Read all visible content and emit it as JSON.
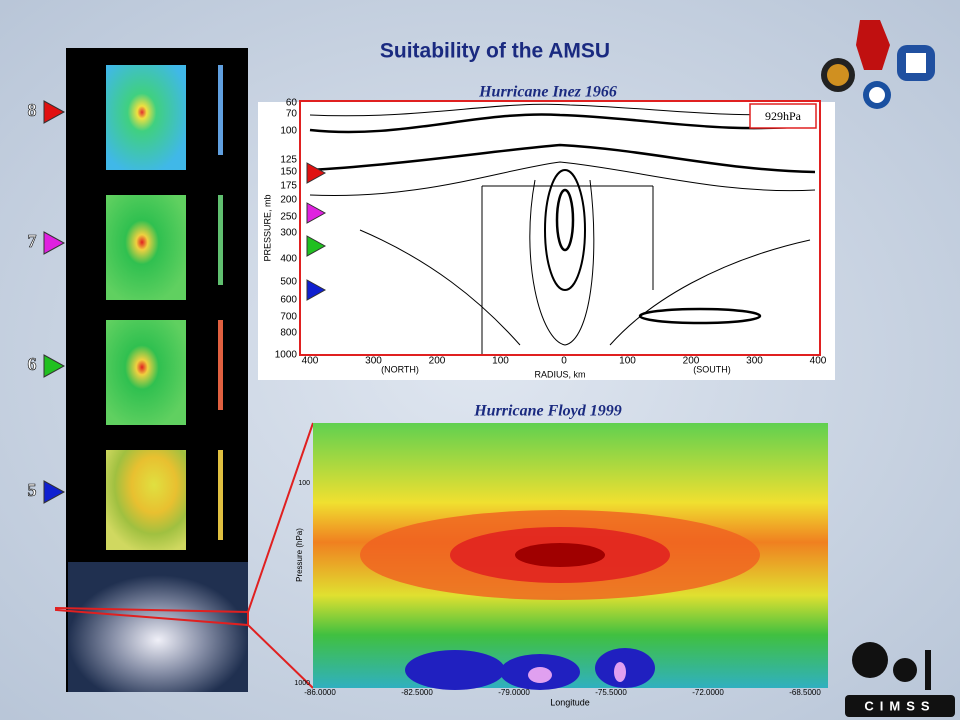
{
  "header": {
    "title": "Suitability of the AMSU"
  },
  "channels": [
    "8",
    "7",
    "6",
    "5"
  ],
  "inez": {
    "title": "Hurricane Inez 1966",
    "annotation": "929hPa",
    "y_label": "PRESSURE, mb",
    "y_ticks": [
      "60",
      "70",
      "100",
      "125",
      "150",
      "175",
      "200",
      "250",
      "300",
      "400",
      "500",
      "600",
      "700",
      "800",
      "1000"
    ],
    "x_ticks": [
      "400",
      "300",
      "200",
      "100",
      "0",
      "100",
      "200",
      "300",
      "400"
    ],
    "x_label": "RADIUS, km",
    "north": "(NORTH)",
    "south": "(SOUTH)"
  },
  "floyd": {
    "title": "Hurricane Floyd 1999",
    "y_label": "Pressure (hPa)",
    "y_ticks": [
      "100",
      "1000"
    ],
    "x_ticks": [
      "-86.0000",
      "-82.5000",
      "-79.0000",
      "-75.5000",
      "-72.0000",
      "-68.5000"
    ],
    "x_label": "Longitude"
  },
  "logo": {
    "text": "CIMSS"
  }
}
